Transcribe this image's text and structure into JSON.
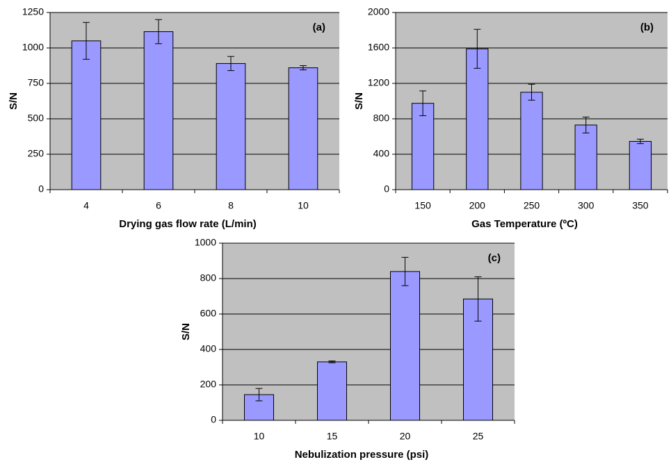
{
  "chart_data": [
    {
      "type": "bar",
      "annotation": "(a)",
      "xlabel": "Drying gas flow rate (L/min)",
      "ylabel": "S/N",
      "categories": [
        "4",
        "6",
        "8",
        "10"
      ],
      "values": [
        1050,
        1115,
        890,
        860
      ],
      "errors": [
        130,
        85,
        50,
        15
      ],
      "color": "#9999ff",
      "ylim": [
        0,
        1250
      ],
      "yticks": [
        0,
        250,
        500,
        750,
        1000,
        1250
      ],
      "grid": true
    },
    {
      "type": "bar",
      "annotation": "(b)",
      "xlabel": "Gas Temperature (ºC)",
      "ylabel": "S/N",
      "categories": [
        "150",
        "200",
        "250",
        "300",
        "350"
      ],
      "values": [
        975,
        1590,
        1100,
        730,
        545
      ],
      "errors": [
        140,
        220,
        90,
        90,
        25
      ],
      "color": "#9999ff",
      "ylim": [
        0,
        2000
      ],
      "yticks": [
        0,
        400,
        800,
        1200,
        1600,
        2000
      ],
      "grid": true
    },
    {
      "type": "bar",
      "annotation": "(c)",
      "xlabel": "Nebulization pressure (psi)",
      "ylabel": "S/N",
      "categories": [
        "10",
        "15",
        "20",
        "25"
      ],
      "values": [
        145,
        330,
        840,
        685
      ],
      "errors": [
        35,
        5,
        80,
        125
      ],
      "color": "#9999ff",
      "ylim": [
        0,
        1000
      ],
      "yticks": [
        0,
        200,
        400,
        600,
        800,
        1000
      ],
      "grid": true
    }
  ]
}
